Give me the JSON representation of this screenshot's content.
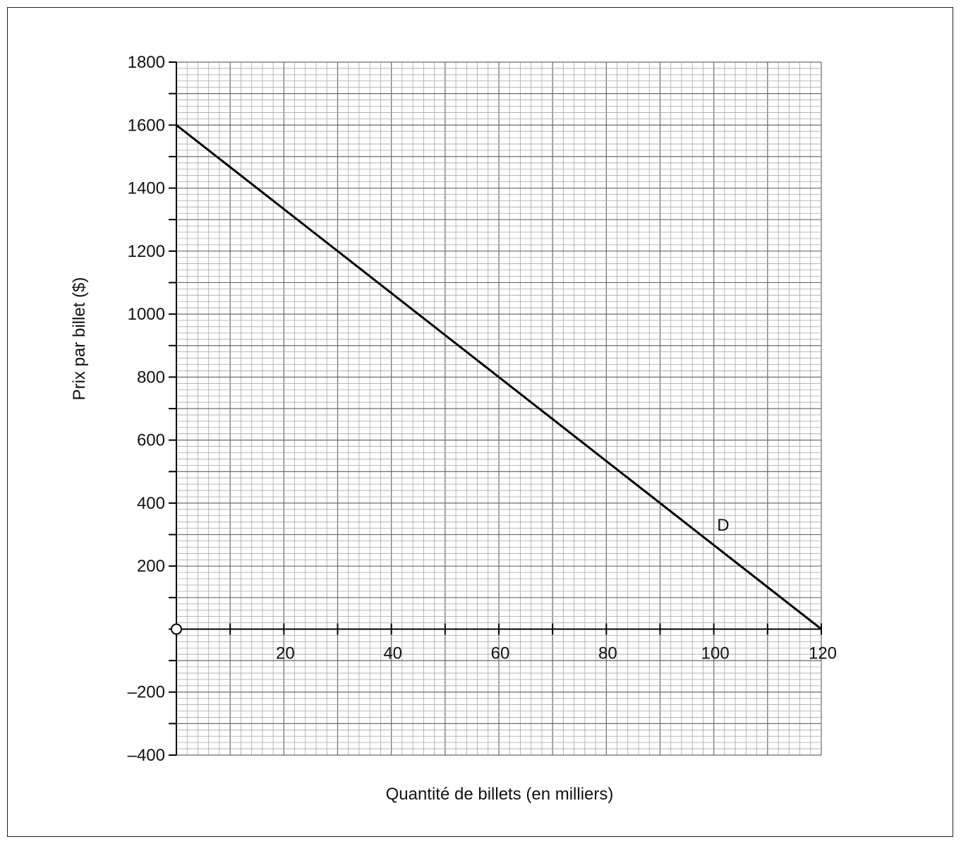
{
  "chart_data": {
    "type": "line",
    "title": "",
    "xlabel": "Quantité de billets (en milliers)",
    "ylabel": "Prix par billet ($)",
    "xlim": [
      0,
      120
    ],
    "ylim": [
      -400,
      1800
    ],
    "grid": true,
    "origin_label": "O",
    "x_ticks": [
      20,
      40,
      60,
      80,
      100,
      120
    ],
    "x_tick_labels": [
      "20",
      "40",
      "60",
      "80",
      "100",
      "120"
    ],
    "y_ticks": [
      -400,
      -200,
      200,
      400,
      600,
      800,
      1000,
      1200,
      1400,
      1600,
      1800
    ],
    "y_tick_labels": [
      "–400",
      "–200",
      "200",
      "400",
      "600",
      "800",
      "1000",
      "1200",
      "1400",
      "1600",
      "1800"
    ],
    "series": [
      {
        "name": "D",
        "x": [
          0,
          120
        ],
        "values": [
          1600,
          0
        ],
        "color": "#000000"
      }
    ]
  }
}
